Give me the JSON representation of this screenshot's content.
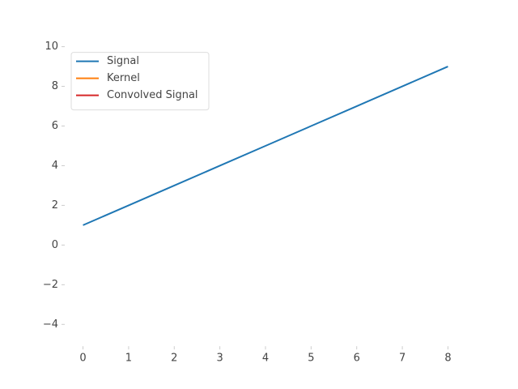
{
  "chart_data": {
    "type": "line",
    "x": [
      0,
      1,
      2,
      3,
      4,
      5,
      6,
      7,
      8
    ],
    "series": [
      {
        "name": "Signal",
        "color": "#1f77b4",
        "values": [
          1,
          2,
          3,
          4,
          5,
          6,
          7,
          8,
          9
        ]
      },
      {
        "name": "Kernel",
        "color": "#ff7f0e",
        "values": [
          null,
          null,
          null,
          null,
          null,
          null,
          null,
          null,
          null
        ]
      },
      {
        "name": "Convolved Signal",
        "color": "#d62728",
        "values": [
          null,
          null,
          null,
          null,
          null,
          null,
          null,
          null,
          null
        ]
      }
    ],
    "xlim": [
      -0.4,
      8.4
    ],
    "xticks": [
      0,
      1,
      2,
      3,
      4,
      5,
      6,
      7,
      8
    ],
    "ylim": [
      -5.1,
      10
    ],
    "yticks": [
      {
        "value": -4,
        "label": "−4"
      },
      {
        "value": -2,
        "label": "−2"
      },
      0,
      2,
      4,
      6,
      8,
      10
    ],
    "grid": false,
    "legend": "upper-left"
  }
}
